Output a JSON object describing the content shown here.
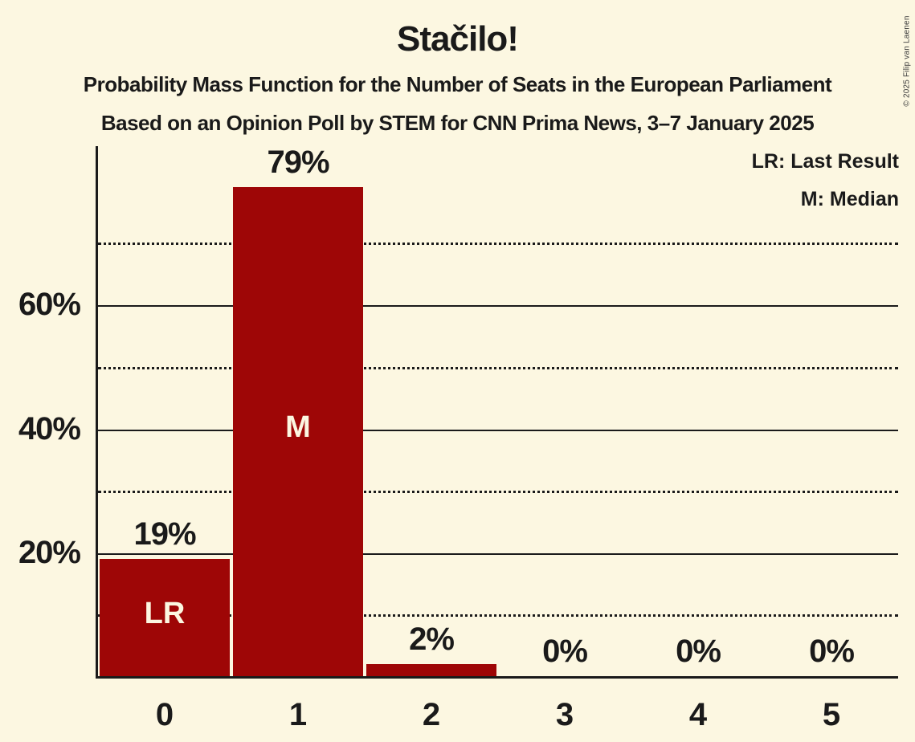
{
  "colors": {
    "background": "#FCF7E1",
    "text": "#1A1A1A",
    "grid": "#1A1A1A",
    "bar": "#9E0606",
    "bar_label": "#FCF7E1",
    "copyright_text": "#3A3A3A"
  },
  "chart_data": {
    "type": "bar",
    "title": "Stačilo!",
    "subtitle": "Probability Mass Function for the Number of Seats in the European Parliament",
    "source": "Based on an Opinion Poll by STEM for CNN Prima News, 3–7 January 2025",
    "copyright": "© 2025 Filip van Laenen",
    "categories": [
      "0",
      "1",
      "2",
      "3",
      "4",
      "5"
    ],
    "values": [
      19,
      79,
      2,
      0,
      0,
      0
    ],
    "value_labels": [
      "19%",
      "79%",
      "2%",
      "0%",
      "0%",
      "0%"
    ],
    "annotations": [
      {
        "category_index": 0,
        "label": "LR",
        "meaning": "Last Result"
      },
      {
        "category_index": 1,
        "label": "M",
        "meaning": "Median"
      }
    ],
    "legend_entries": [
      "LR: Last Result",
      "M: Median"
    ],
    "legend_position": "top-right",
    "xlabel": "",
    "ylabel": "",
    "ylim": [
      0,
      86
    ],
    "yticks_solid": [
      {
        "value": 20,
        "label": "20%"
      },
      {
        "value": 40,
        "label": "40%"
      },
      {
        "value": 60,
        "label": "60%"
      }
    ],
    "yticks_dotted": [
      10,
      30,
      50,
      70
    ],
    "grid": true
  }
}
